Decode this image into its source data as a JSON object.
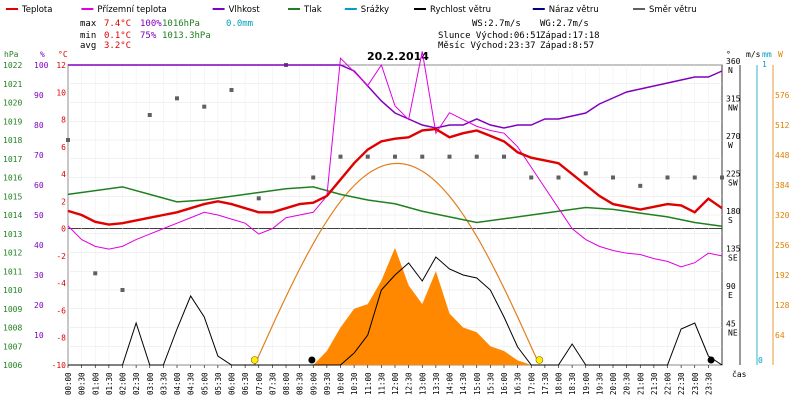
{
  "legend": {
    "items": [
      {
        "label": "Teplota",
        "color": "#e00000"
      },
      {
        "label": "Přízemní teplota",
        "color": "#e000e0"
      },
      {
        "label": "Vlhkost",
        "color": "#8000c0"
      },
      {
        "label": "Tlak",
        "color": "#208020"
      },
      {
        "label": "Srážky",
        "color": "#00a0c0"
      },
      {
        "label": "Rychlost větru",
        "color": "#000000"
      },
      {
        "label": "Náraz větru",
        "color": "#000080"
      },
      {
        "label": "Směr větru",
        "color": "#606060"
      }
    ]
  },
  "stats": {
    "max_label": "max",
    "max_temp": "7.4°C",
    "max_hum": "100%",
    "max_press": "1016hPa",
    "max_rain": "0.0mm",
    "min_label": "min",
    "min_temp": "0.1°C",
    "min_hum": "75%",
    "min_press": "1013.3hPa",
    "avg_label": "avg",
    "avg_temp": "3.2°C"
  },
  "sun": {
    "ws": "WS:2.7m/s",
    "wg": "WG:2.7m/s",
    "slunce": "Slunce Východ:06:51",
    "slunce_zapad": "Západ:17:18",
    "mesic": "Měsíc Východ:23:37",
    "mesic_zapad": "Západ:8:57"
  },
  "date": "20.2.2014",
  "axes": {
    "hpa_label": "hPa",
    "pct_label": "%",
    "temp_label": "°C",
    "deg_label": "°",
    "ms_label": "m/s",
    "mm_label": "mm",
    "w_label": "W",
    "hpa_ticks": [
      "1022",
      "1021",
      "1020",
      "1019",
      "1018",
      "1017",
      "1016",
      "1015",
      "1014",
      "1013",
      "1012",
      "1011",
      "1010",
      "1009",
      "1008",
      "1007",
      "1006"
    ],
    "pct_ticks": [
      "100",
      "90",
      "80",
      "70",
      "60",
      "50",
      "40",
      "30",
      "20",
      "10"
    ],
    "temp_ticks": [
      "12",
      "10",
      "8",
      "6",
      "4",
      "2",
      "0",
      "-2",
      "-4",
      "-6",
      "-8",
      "-10"
    ],
    "dir_ticks": [
      {
        "deg": "360",
        "name": "N"
      },
      {
        "deg": "315",
        "name": "NW"
      },
      {
        "deg": "270",
        "name": "W"
      },
      {
        "deg": "225",
        "name": "SW"
      },
      {
        "deg": "180",
        "name": "S"
      },
      {
        "deg": "135",
        "name": "SE"
      },
      {
        "deg": "90",
        "name": "E"
      },
      {
        "deg": "45",
        "name": "NE"
      }
    ],
    "w_ticks": [
      "576",
      "512",
      "448",
      "384",
      "320",
      "256",
      "192",
      "128",
      "64"
    ],
    "rain_ticks": [
      "0",
      "1"
    ],
    "x_label": "čas"
  },
  "chart_data": {
    "type": "line",
    "title": "20.2.2014",
    "x_ticks": [
      "00:00",
      "00:30",
      "01:00",
      "01:30",
      "02:00",
      "02:30",
      "03:00",
      "03:30",
      "04:00",
      "04:30",
      "05:00",
      "05:30",
      "06:00",
      "06:30",
      "07:00",
      "07:30",
      "08:00",
      "08:30",
      "09:00",
      "09:30",
      "10:00",
      "10:30",
      "11:00",
      "11:30",
      "12:00",
      "12:30",
      "13:00",
      "13:30",
      "14:00",
      "14:30",
      "15:00",
      "15:30",
      "16:00",
      "16:30",
      "17:00",
      "17:30",
      "18:00",
      "18:30",
      "19:00",
      "19:30",
      "20:00",
      "20:30",
      "21:00",
      "21:30",
      "22:00",
      "22:30",
      "23:00",
      "23:30"
    ],
    "temp_range": [
      -10,
      12
    ],
    "series": [
      {
        "name": "Teplota",
        "unit": "°C",
        "x_hours": [
          0,
          0.5,
          1,
          1.5,
          2,
          2.5,
          3,
          3.5,
          4,
          4.5,
          5,
          5.5,
          6,
          6.5,
          7,
          7.5,
          8,
          8.5,
          9,
          9.5,
          10,
          10.5,
          11,
          11.5,
          12,
          12.5,
          13,
          13.5,
          14,
          14.5,
          15,
          15.5,
          16,
          16.5,
          17,
          17.5,
          18,
          18.5,
          19,
          19.5,
          20,
          20.5,
          21,
          21.5,
          22,
          22.5,
          23,
          23.5,
          24
        ],
        "values": [
          1.3,
          1.0,
          0.5,
          0.3,
          0.4,
          0.6,
          0.8,
          1.0,
          1.2,
          1.5,
          1.8,
          2.0,
          1.8,
          1.5,
          1.2,
          1.2,
          1.5,
          1.8,
          1.9,
          2.4,
          3.6,
          4.8,
          5.8,
          6.4,
          6.6,
          6.7,
          7.2,
          7.3,
          6.7,
          7.0,
          7.2,
          6.8,
          6.4,
          5.6,
          5.2,
          5.0,
          4.8,
          4.0,
          3.2,
          2.4,
          1.8,
          1.6,
          1.4,
          1.6,
          1.8,
          1.7,
          1.2,
          2.2,
          1.5
        ]
      },
      {
        "name": "Přízemní teplota",
        "unit": "°C",
        "x_hours": [
          0,
          0.5,
          1,
          1.5,
          2,
          2.5,
          3,
          3.5,
          4,
          4.5,
          5,
          5.5,
          6,
          6.5,
          7,
          7.5,
          8,
          8.5,
          9,
          9.5,
          10,
          10.5,
          11,
          11.5,
          12,
          12.5,
          13,
          13.5,
          14,
          14.5,
          15,
          15.5,
          16,
          16.5,
          17,
          17.5,
          18,
          18.5,
          19,
          19.5,
          20,
          20.5,
          21,
          21.5,
          22,
          22.5,
          23,
          23.5,
          24
        ],
        "values": [
          0.2,
          -0.8,
          -1.3,
          -1.5,
          -1.3,
          -0.8,
          -0.4,
          0.0,
          0.4,
          0.8,
          1.2,
          1.0,
          0.7,
          0.4,
          -0.4,
          0.0,
          0.8,
          1.0,
          1.2,
          2.4,
          12.5,
          11.5,
          10.5,
          12.0,
          9.0,
          8.0,
          13.0,
          7.0,
          8.5,
          8.0,
          7.5,
          7.2,
          7.0,
          6.0,
          4.5,
          3.0,
          1.5,
          0.0,
          -0.8,
          -1.3,
          -1.6,
          -1.8,
          -1.9,
          -2.2,
          -2.4,
          -2.8,
          -2.5,
          -1.8,
          -2.0
        ]
      },
      {
        "name": "Vlhkost",
        "unit": "%",
        "x_hours": [
          0,
          2,
          4,
          6,
          8,
          10,
          10.5,
          11,
          11.5,
          12,
          12.5,
          13,
          13.5,
          14,
          14.5,
          15,
          15.5,
          16,
          16.5,
          17,
          17.5,
          18,
          18.5,
          19,
          19.5,
          20,
          20.5,
          21,
          21.5,
          22,
          22.5,
          23,
          23.5,
          24
        ],
        "values": [
          100,
          100,
          100,
          100,
          100,
          100,
          98,
          93,
          88,
          84,
          82,
          80,
          79,
          80,
          80,
          82,
          80,
          79,
          80,
          80,
          82,
          82,
          83,
          84,
          87,
          89,
          91,
          92,
          93,
          94,
          95,
          96,
          96,
          98
        ]
      },
      {
        "name": "Tlak",
        "unit": "hPa",
        "x_hours": [
          0,
          1,
          2,
          3,
          4,
          5,
          6,
          7,
          8,
          9,
          10,
          11,
          12,
          13,
          14,
          15,
          16,
          17,
          18,
          19,
          20,
          21,
          22,
          23,
          24
        ],
        "values": [
          1015.1,
          1015.3,
          1015.5,
          1015.1,
          1014.7,
          1014.8,
          1015.0,
          1015.2,
          1015.4,
          1015.5,
          1015.1,
          1014.8,
          1014.6,
          1014.2,
          1013.9,
          1013.6,
          1013.8,
          1014.0,
          1014.2,
          1014.4,
          1014.3,
          1014.1,
          1013.9,
          1013.6,
          1013.4
        ]
      },
      {
        "name": "Rychlost větru",
        "unit": "m/s",
        "x_hours": [
          0,
          1,
          2,
          2.5,
          3,
          3.5,
          4,
          4.5,
          5,
          5.5,
          6,
          6.5,
          7,
          7.5,
          8,
          8.5,
          9,
          9.5,
          10,
          10.5,
          11,
          11.5,
          12,
          12.5,
          13,
          13.5,
          14,
          14.5,
          15,
          15.5,
          16,
          16.5,
          17,
          17.5,
          18,
          18.5,
          19,
          19.5,
          20,
          20.5,
          21,
          21.5,
          22,
          22.5,
          23,
          23.5,
          24
        ],
        "values": [
          0,
          0,
          0,
          1.4,
          0,
          0,
          1.2,
          2.3,
          1.6,
          0.3,
          0,
          0,
          0,
          0,
          0,
          0,
          0,
          0,
          0,
          0.4,
          1.0,
          2.5,
          3.0,
          3.4,
          2.8,
          3.6,
          3.2,
          3.0,
          2.9,
          2.5,
          1.6,
          0.6,
          0,
          0,
          0,
          0.7,
          0,
          0,
          0,
          0,
          0,
          0,
          0,
          1.2,
          1.4,
          0.3,
          0
        ]
      },
      {
        "name": "Náraz větru",
        "unit": "m/s",
        "x_hours": [
          0,
          10,
          11,
          12,
          14,
          16,
          18,
          20,
          22,
          24
        ],
        "values": [
          0,
          0,
          0,
          0,
          0,
          0,
          0,
          0,
          0,
          0
        ]
      },
      {
        "name": "Směr větru",
        "unit": "°",
        "x_hours": [
          0,
          1,
          2,
          3,
          4,
          5,
          6,
          7,
          8,
          9,
          10,
          11,
          12,
          13,
          14,
          15,
          16,
          17,
          18,
          19,
          20,
          21,
          22,
          23,
          24
        ],
        "values": [
          270,
          110,
          90,
          300,
          320,
          310,
          330,
          200,
          360,
          225,
          250,
          250,
          250,
          250,
          250,
          250,
          250,
          225,
          225,
          230,
          225,
          215,
          225,
          225,
          225
        ]
      },
      {
        "name": "Sluneční záření",
        "unit": "W",
        "x_hours": [
          9,
          9.5,
          10,
          10.5,
          11,
          11.5,
          12,
          12.5,
          13,
          13.5,
          14,
          14.5,
          15,
          15.5,
          16,
          16.5,
          17
        ],
        "values": [
          0,
          30,
          80,
          120,
          130,
          180,
          250,
          170,
          130,
          200,
          110,
          80,
          70,
          40,
          30,
          10,
          0
        ]
      }
    ]
  }
}
